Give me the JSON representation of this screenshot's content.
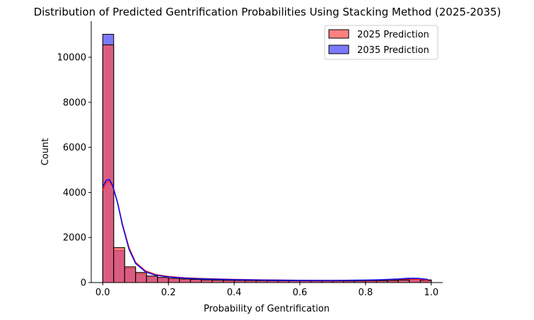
{
  "chart_data": {
    "type": "bar",
    "title": "Distribution of Predicted Gentrification Probabilities Using Stacking Method (2025-2035)",
    "xlabel": "Probability of Gentrification",
    "ylabel": "Count",
    "xlim": [
      -0.035,
      1.035
    ],
    "ylim": [
      0,
      11600
    ],
    "xticks": [
      0.0,
      0.2,
      0.4,
      0.6,
      0.8,
      1.0
    ],
    "xtick_labels": [
      "0.0",
      "0.2",
      "0.4",
      "0.6",
      "0.8",
      "1.0"
    ],
    "yticks": [
      0,
      2000,
      4000,
      6000,
      8000,
      10000
    ],
    "ytick_labels": [
      "0",
      "2000",
      "4000",
      "6000",
      "8000",
      "10000"
    ],
    "grid": false,
    "legend_position": "top-right",
    "bin_edges": [
      0.0,
      0.0333,
      0.0667,
      0.1,
      0.1333,
      0.1667,
      0.2,
      0.2333,
      0.2667,
      0.3,
      0.3333,
      0.3667,
      0.4,
      0.4333,
      0.4667,
      0.5,
      0.5333,
      0.5667,
      0.6,
      0.6333,
      0.6667,
      0.7,
      0.7333,
      0.7667,
      0.8,
      0.8333,
      0.8667,
      0.9,
      0.9333,
      0.9667,
      1.0
    ],
    "series": [
      {
        "name": "2025 Prediction",
        "color": "#ff5050",
        "kde_color": "#ff2020",
        "values": [
          10550,
          1550,
          700,
          450,
          290,
          230,
          190,
          160,
          140,
          120,
          110,
          100,
          95,
          90,
          85,
          80,
          78,
          76,
          74,
          72,
          70,
          70,
          70,
          72,
          75,
          80,
          90,
          110,
          140,
          100
        ]
      },
      {
        "name": "2035 Prediction",
        "color": "#4b45ff",
        "kde_color": "#1010e8",
        "values": [
          11020,
          1420,
          640,
          400,
          280,
          220,
          180,
          150,
          130,
          115,
          105,
          98,
          92,
          88,
          84,
          80,
          78,
          76,
          74,
          72,
          70,
          70,
          72,
          75,
          80,
          90,
          110,
          140,
          170,
          120
        ]
      }
    ],
    "kde_x": [
      0.0,
      0.01,
      0.02,
      0.03,
      0.045,
      0.06,
      0.08,
      0.1,
      0.13,
      0.16,
      0.2,
      0.25,
      0.3,
      0.4,
      0.5,
      0.6,
      0.7,
      0.8,
      0.85,
      0.9,
      0.93,
      0.96,
      0.99
    ],
    "kde_series": [
      {
        "name": "2025 Prediction",
        "values": [
          4100,
          4420,
          4500,
          4280,
          3550,
          2600,
          1550,
          900,
          520,
          360,
          270,
          210,
          180,
          140,
          115,
          100,
          95,
          105,
          120,
          140,
          160,
          150,
          110
        ]
      },
      {
        "name": "2035 Prediction",
        "values": [
          4250,
          4530,
          4580,
          4320,
          3550,
          2550,
          1480,
          850,
          480,
          330,
          250,
          195,
          165,
          130,
          110,
          98,
          95,
          110,
          130,
          160,
          190,
          185,
          140
        ]
      }
    ]
  }
}
